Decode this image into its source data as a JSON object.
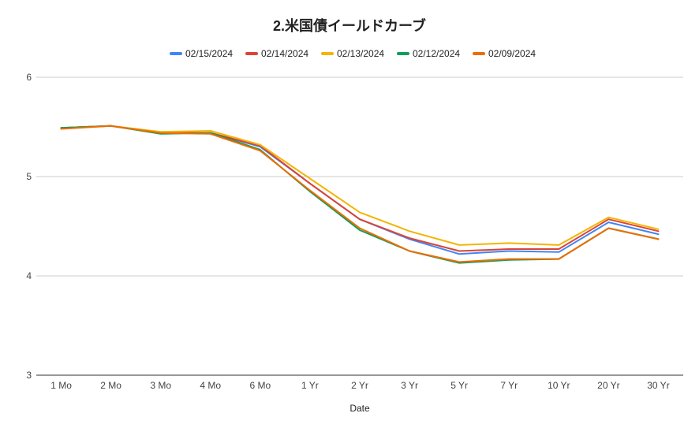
{
  "chart_data": {
    "type": "line",
    "title": "2.米国債イールドカーブ",
    "xlabel": "Date",
    "ylabel": "",
    "ylim": [
      3,
      6
    ],
    "yticks": [
      3,
      4,
      5,
      6
    ],
    "grid": true,
    "legend_position": "top",
    "categories": [
      "1 Mo",
      "2 Mo",
      "3 Mo",
      "4 Mo",
      "6 Mo",
      "1 Yr",
      "2 Yr",
      "3 Yr",
      "5 Yr",
      "7 Yr",
      "10 Yr",
      "20 Yr",
      "30 Yr"
    ],
    "series": [
      {
        "name": "02/15/2024",
        "color": "#4285f4",
        "values": [
          5.49,
          5.51,
          5.44,
          5.44,
          5.3,
          4.93,
          4.57,
          4.37,
          4.22,
          4.25,
          4.24,
          4.54,
          4.42
        ]
      },
      {
        "name": "02/14/2024",
        "color": "#db4437",
        "values": [
          5.49,
          5.51,
          5.44,
          5.44,
          5.31,
          4.93,
          4.57,
          4.38,
          4.25,
          4.27,
          4.27,
          4.57,
          4.45
        ]
      },
      {
        "name": "02/13/2024",
        "color": "#f4b400",
        "values": [
          5.49,
          5.51,
          5.45,
          5.46,
          5.32,
          4.98,
          4.64,
          4.45,
          4.31,
          4.33,
          4.31,
          4.59,
          4.47
        ]
      },
      {
        "name": "02/12/2024",
        "color": "#0f9d58",
        "values": [
          5.49,
          5.51,
          5.43,
          5.44,
          5.27,
          4.85,
          4.46,
          4.25,
          4.13,
          4.16,
          4.17,
          4.48,
          4.37
        ]
      },
      {
        "name": "02/09/2024",
        "color": "#ef6c00",
        "values": [
          5.48,
          5.51,
          5.44,
          5.43,
          5.26,
          4.86,
          4.48,
          4.25,
          4.14,
          4.17,
          4.17,
          4.48,
          4.37
        ]
      }
    ]
  }
}
